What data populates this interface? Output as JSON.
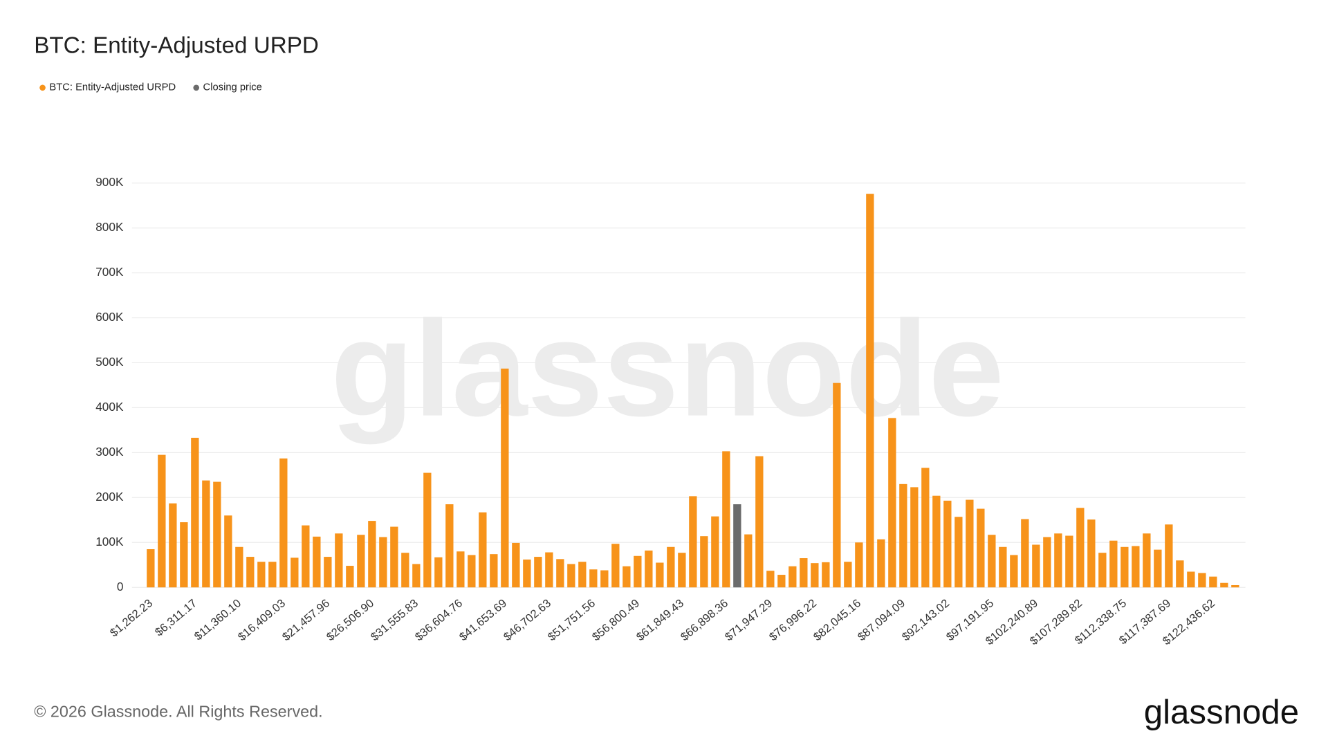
{
  "chart_data": {
    "type": "bar",
    "title": "BTC: Entity-Adjusted URPD",
    "watermark": "glassnode",
    "footer": "© 2026 Glassnode. All Rights Reserved.",
    "logo": "glassnode",
    "categories": [
      "$1,262.23",
      null,
      null,
      null,
      "$6,311.17",
      null,
      null,
      null,
      "$11,360.10",
      null,
      null,
      null,
      "$16,409.03",
      null,
      null,
      null,
      "$21,457.96",
      null,
      null,
      null,
      "$26,506.90",
      null,
      null,
      null,
      "$31,555.83",
      null,
      null,
      null,
      "$36,604.76",
      null,
      null,
      null,
      "$41,653.69",
      null,
      null,
      null,
      "$46,702.63",
      null,
      null,
      null,
      "$51,751.56",
      null,
      null,
      null,
      "$56,800.49",
      null,
      null,
      null,
      "$61,849.43",
      null,
      null,
      null,
      "$66,898.36",
      null,
      null,
      null,
      "$71,947.29",
      null,
      null,
      null,
      "$76,996.22",
      null,
      null,
      null,
      "$82,045.16",
      null,
      null,
      null,
      "$87,094.09",
      null,
      null,
      null,
      "$92,143.02",
      null,
      null,
      null,
      "$97,191.95",
      null,
      null,
      null,
      "$102,240.89",
      null,
      null,
      null,
      "$107,289.82",
      null,
      null,
      null,
      "$112,338.75",
      null,
      null,
      null,
      "$117,387.69",
      null,
      null,
      null,
      "$122,436.62",
      null,
      null
    ],
    "series": [
      {
        "name": "BTC: Entity-Adjusted URPD",
        "color": "#f7931a",
        "values": [
          85000,
          295000,
          187000,
          145000,
          333000,
          238000,
          235000,
          160000,
          90000,
          68000,
          57000,
          57000,
          287000,
          66000,
          138000,
          113000,
          68000,
          120000,
          48000,
          117000,
          148000,
          112000,
          135000,
          77000,
          52000,
          255000,
          67000,
          185000,
          80000,
          72000,
          167000,
          74000,
          487000,
          99000,
          62000,
          68000,
          78000,
          63000,
          52000,
          57000,
          40000,
          38000,
          97000,
          47000,
          70000,
          82000,
          55000,
          90000,
          77000,
          203000,
          114000,
          158000,
          303000,
          null,
          118000,
          292000,
          37000,
          28000,
          47000,
          65000,
          54000,
          56000,
          455000,
          57000,
          100000,
          876000,
          107000,
          377000,
          230000,
          223000,
          266000,
          204000,
          193000,
          157000,
          195000,
          175000,
          117000,
          90000,
          72000,
          152000,
          95000,
          112000,
          120000,
          115000,
          177000,
          151000,
          77000,
          104000,
          90000,
          92000,
          120000,
          84000,
          140000,
          60000,
          35000,
          32000,
          24000,
          10000,
          5000
        ]
      },
      {
        "name": "Closing price",
        "color": "#6b6b6b",
        "values": [
          null,
          null,
          null,
          null,
          null,
          null,
          null,
          null,
          null,
          null,
          null,
          null,
          null,
          null,
          null,
          null,
          null,
          null,
          null,
          null,
          null,
          null,
          null,
          null,
          null,
          null,
          null,
          null,
          null,
          null,
          null,
          null,
          null,
          null,
          null,
          null,
          null,
          null,
          null,
          null,
          null,
          null,
          null,
          null,
          null,
          null,
          null,
          null,
          null,
          null,
          null,
          null,
          null,
          185000,
          null,
          null,
          null,
          null,
          null,
          null,
          null,
          null,
          null,
          null,
          null,
          null,
          null,
          null,
          null,
          null,
          null,
          null,
          null,
          null,
          null,
          null,
          null,
          null,
          null,
          null,
          null,
          null,
          null,
          null,
          null,
          null,
          null,
          null,
          null,
          null,
          null,
          null,
          null,
          null,
          null,
          null,
          null,
          null,
          null
        ]
      }
    ],
    "ylim": [
      0,
      900000
    ],
    "yticks": [
      0,
      {
        "value": 100000,
        "label": "100K"
      },
      {
        "value": 200000,
        "label": "200K"
      },
      {
        "value": 300000,
        "label": "300K"
      },
      {
        "value": 400000,
        "label": "400K"
      },
      {
        "value": 500000,
        "label": "500K"
      },
      {
        "value": 600000,
        "label": "600K"
      },
      {
        "value": 700000,
        "label": "700K"
      },
      {
        "value": 800000,
        "label": "800K"
      },
      {
        "value": 900000,
        "label": "900K"
      }
    ],
    "grid": true,
    "legend": "top-left"
  }
}
